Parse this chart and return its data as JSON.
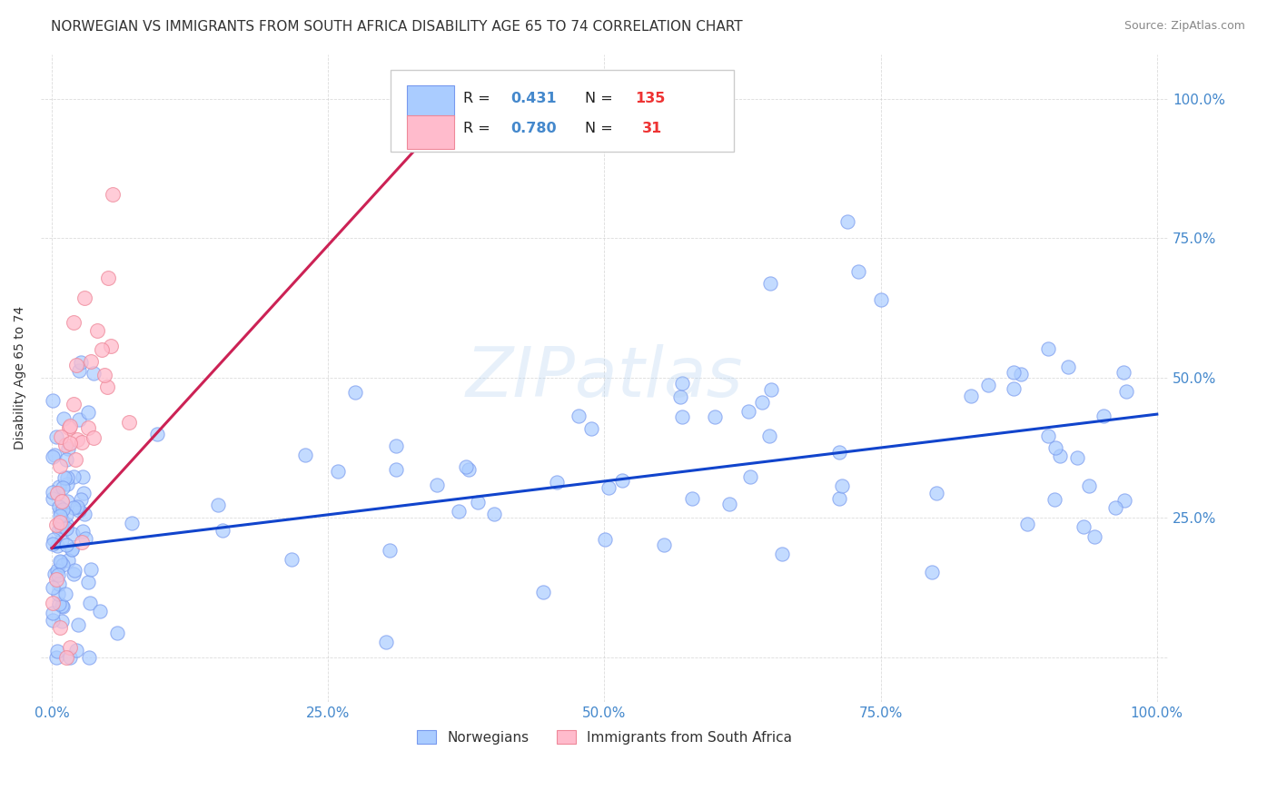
{
  "title": "NORWEGIAN VS IMMIGRANTS FROM SOUTH AFRICA DISABILITY AGE 65 TO 74 CORRELATION CHART",
  "source": "Source: ZipAtlas.com",
  "ylabel": "Disability Age 65 to 74",
  "watermark": "ZIPatlas",
  "norwegian": {
    "R": 0.431,
    "N": 135,
    "dot_color": "#aaccff",
    "edge_color": "#7799ee",
    "line_color": "#1144cc",
    "label": "Norwegians"
  },
  "immigrant": {
    "R": 0.78,
    "N": 31,
    "dot_color": "#ffbbcc",
    "edge_color": "#ee8899",
    "line_color": "#cc2255",
    "label": "Immigrants from South Africa"
  },
  "xlim": [
    -0.01,
    1.01
  ],
  "ylim": [
    -0.08,
    1.08
  ],
  "xticks": [
    0,
    0.25,
    0.5,
    0.75,
    1.0
  ],
  "yticks": [
    0,
    0.25,
    0.5,
    0.75,
    1.0
  ],
  "xticklabels": [
    "0.0%",
    "25.0%",
    "50.0%",
    "75.0%",
    "100.0%"
  ],
  "yticklabels_right": [
    "",
    "25.0%",
    "50.0%",
    "75.0%",
    "100.0%"
  ],
  "background_color": "#ffffff",
  "grid_color": "#cccccc",
  "title_fontsize": 11,
  "axis_label_fontsize": 10,
  "tick_fontsize": 11,
  "legend_fontsize": 11,
  "source_fontsize": 9,
  "nor_line_x0": 0.0,
  "nor_line_y0": 0.195,
  "nor_line_x1": 1.0,
  "nor_line_y1": 0.435,
  "imm_line_x0": 0.0,
  "imm_line_y0": 0.195,
  "imm_line_x1": 0.38,
  "imm_line_y1": 1.02
}
